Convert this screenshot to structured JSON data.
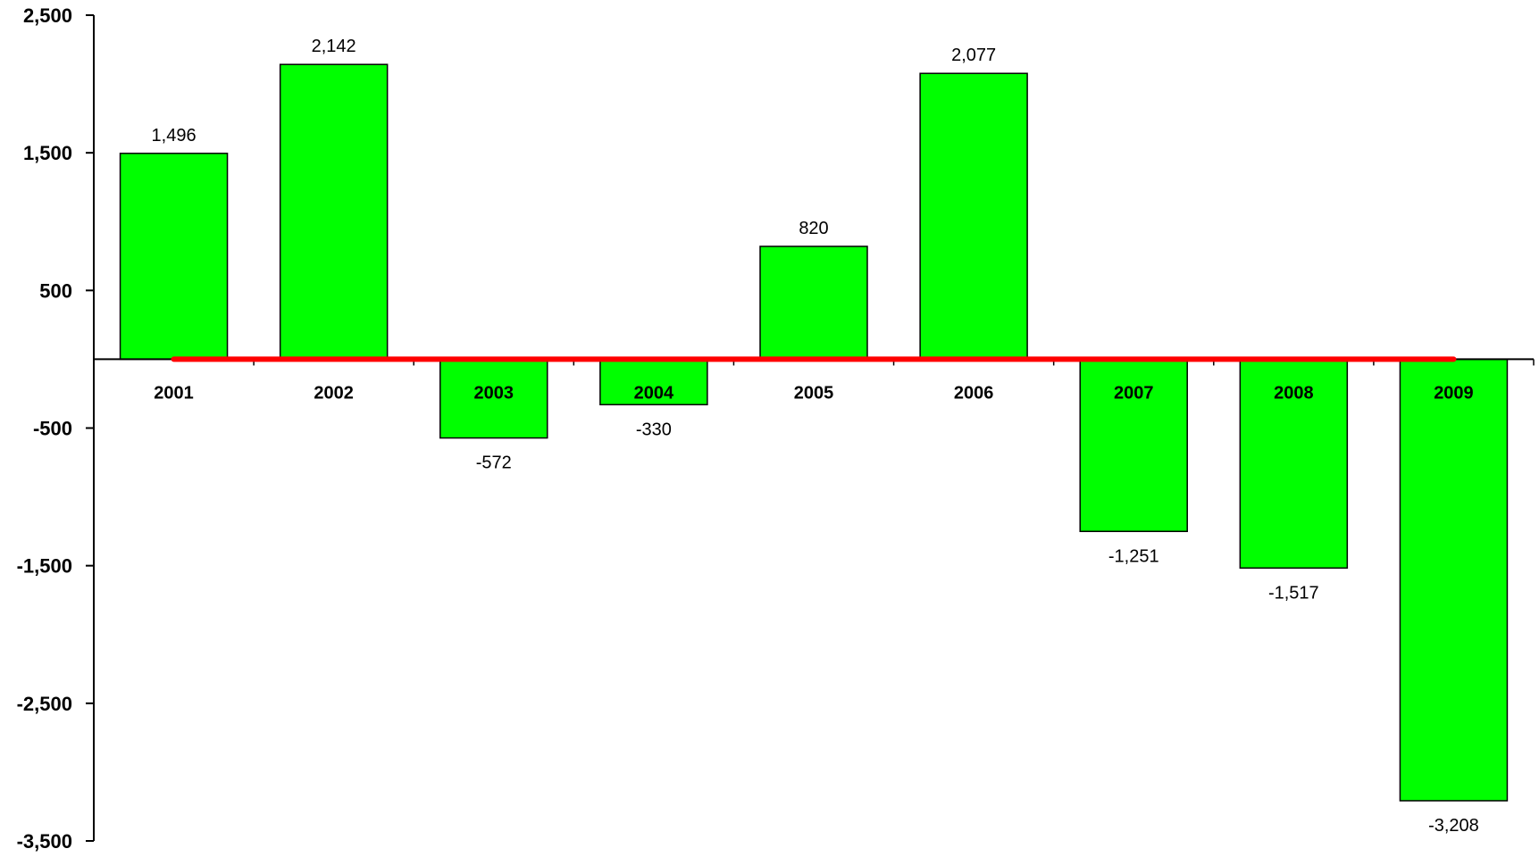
{
  "chart_data": {
    "type": "bar",
    "categories": [
      "2001",
      "2002",
      "2003",
      "2004",
      "2005",
      "2006",
      "2007",
      "2008",
      "2009"
    ],
    "series": [
      {
        "values": [
          1496,
          2142,
          -572,
          -330,
          820,
          2077,
          -1251,
          -1517,
          -3208
        ]
      }
    ],
    "data_labels": [
      "1,496",
      "2,142",
      "-572",
      "-330",
      "820",
      "2,077",
      "-1,251",
      "-1,517",
      "-3,208"
    ],
    "yticks": [
      2500,
      1500,
      500,
      -500,
      -1500,
      -2500,
      -3500
    ],
    "ytick_labels": [
      "2,500",
      "1,500",
      "500",
      "-500",
      "-1,500",
      "-2,500",
      "-3,500"
    ],
    "ylim": [
      -3500,
      2500
    ],
    "title": "",
    "xlabel": "",
    "ylabel": "",
    "grid": false,
    "legend": "none",
    "reference_line": {
      "value": 0,
      "from_category": "2001",
      "to_category": "2009",
      "color": "#ff0000"
    },
    "colors": {
      "bar_fill": "#00ff00",
      "bar_stroke": "#000000",
      "axis": "#000000"
    }
  }
}
